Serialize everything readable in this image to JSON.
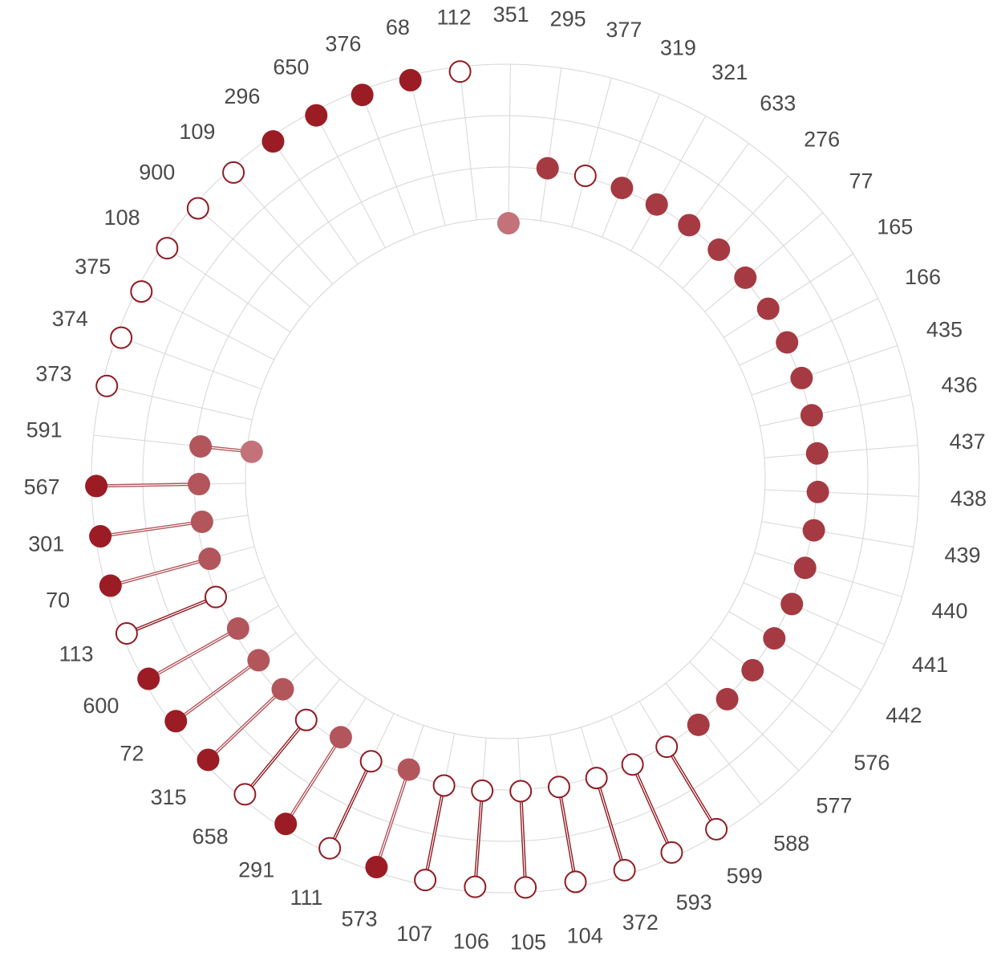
{
  "chart_data": {
    "type": "radial-dumbbell",
    "title": "",
    "colors": {
      "outer_filled": "#9b1c24",
      "mid_filled": "#b2565c",
      "inner_filled": "#c27278",
      "base_filled": "#a53a42",
      "outline_stroke": "#8f1b22",
      "open_fill": "#ffffff",
      "grid": "#d6d6d6",
      "label": "#4a4a4a"
    },
    "rings": [
      "inner",
      "mid",
      "base",
      "outer"
    ],
    "categories": [
      {
        "label": "591",
        "from": "inner",
        "from_filled": true,
        "to": "mid",
        "to_filled": true
      },
      {
        "label": "373",
        "from": null,
        "to": "outer",
        "to_filled": false
      },
      {
        "label": "374",
        "from": null,
        "to": "outer",
        "to_filled": false
      },
      {
        "label": "375",
        "from": null,
        "to": "outer",
        "to_filled": false
      },
      {
        "label": "108",
        "from": null,
        "to": "outer",
        "to_filled": false
      },
      {
        "label": "900",
        "from": null,
        "to": "outer",
        "to_filled": false
      },
      {
        "label": "109",
        "from": null,
        "to": "outer",
        "to_filled": false
      },
      {
        "label": "296",
        "from": null,
        "to": "outer",
        "to_filled": true
      },
      {
        "label": "650",
        "from": null,
        "to": "outer",
        "to_filled": true
      },
      {
        "label": "376",
        "from": null,
        "to": "outer",
        "to_filled": true
      },
      {
        "label": "68",
        "from": null,
        "to": "outer",
        "to_filled": true
      },
      {
        "label": "112",
        "from": null,
        "to": "outer",
        "to_filled": false
      },
      {
        "label": "351",
        "from": null,
        "to": "inner",
        "to_filled": true
      },
      {
        "label": "295",
        "from": null,
        "to": "base",
        "to_filled": true
      },
      {
        "label": "377",
        "from": null,
        "to": "base",
        "to_filled": false
      },
      {
        "label": "319",
        "from": null,
        "to": "base",
        "to_filled": true
      },
      {
        "label": "321",
        "from": null,
        "to": "base",
        "to_filled": true
      },
      {
        "label": "633",
        "from": null,
        "to": "base",
        "to_filled": true
      },
      {
        "label": "276",
        "from": null,
        "to": "base",
        "to_filled": true
      },
      {
        "label": "77",
        "from": null,
        "to": "base",
        "to_filled": true
      },
      {
        "label": "165",
        "from": null,
        "to": "base",
        "to_filled": true
      },
      {
        "label": "166",
        "from": null,
        "to": "base",
        "to_filled": true
      },
      {
        "label": "435",
        "from": null,
        "to": "base",
        "to_filled": true
      },
      {
        "label": "436",
        "from": null,
        "to": "base",
        "to_filled": true
      },
      {
        "label": "437",
        "from": null,
        "to": "base",
        "to_filled": true
      },
      {
        "label": "438",
        "from": null,
        "to": "base",
        "to_filled": true
      },
      {
        "label": "439",
        "from": null,
        "to": "base",
        "to_filled": true
      },
      {
        "label": "440",
        "from": null,
        "to": "base",
        "to_filled": true
      },
      {
        "label": "441",
        "from": null,
        "to": "base",
        "to_filled": true
      },
      {
        "label": "442",
        "from": null,
        "to": "base",
        "to_filled": true
      },
      {
        "label": "576",
        "from": null,
        "to": "base",
        "to_filled": true
      },
      {
        "label": "577",
        "from": null,
        "to": "base",
        "to_filled": true
      },
      {
        "label": "588",
        "from": null,
        "to": "base",
        "to_filled": true
      },
      {
        "label": "599",
        "from": "base",
        "from_filled": false,
        "to": "outer",
        "to_filled": false
      },
      {
        "label": "593",
        "from": "base",
        "from_filled": false,
        "to": "outer",
        "to_filled": false
      },
      {
        "label": "372",
        "from": "base",
        "from_filled": false,
        "to": "outer",
        "to_filled": false
      },
      {
        "label": "104",
        "from": "base",
        "from_filled": false,
        "to": "outer",
        "to_filled": false
      },
      {
        "label": "105",
        "from": "base",
        "from_filled": false,
        "to": "outer",
        "to_filled": false
      },
      {
        "label": "106",
        "from": "base",
        "from_filled": false,
        "to": "outer",
        "to_filled": false
      },
      {
        "label": "107",
        "from": "base",
        "from_filled": false,
        "to": "outer",
        "to_filled": false
      },
      {
        "label": "573",
        "from": "mid",
        "from_filled": true,
        "to": "outer",
        "to_filled": true
      },
      {
        "label": "111",
        "from": "base",
        "from_filled": false,
        "to": "outer",
        "to_filled": false
      },
      {
        "label": "291",
        "from": "mid",
        "from_filled": true,
        "to": "outer",
        "to_filled": true
      },
      {
        "label": "658",
        "from": "base",
        "from_filled": false,
        "to": "outer",
        "to_filled": false
      },
      {
        "label": "315",
        "from": "mid",
        "from_filled": true,
        "to": "outer",
        "to_filled": true
      },
      {
        "label": "72",
        "from": "mid",
        "from_filled": true,
        "to": "outer",
        "to_filled": true
      },
      {
        "label": "600",
        "from": "mid",
        "from_filled": true,
        "to": "outer",
        "to_filled": true
      },
      {
        "label": "113",
        "from": "base",
        "from_filled": false,
        "to": "outer",
        "to_filled": false
      },
      {
        "label": "70",
        "from": "mid",
        "from_filled": true,
        "to": "outer",
        "to_filled": true
      },
      {
        "label": "301",
        "from": "mid",
        "from_filled": true,
        "to": "outer",
        "to_filled": true
      },
      {
        "label": "567",
        "from": "mid",
        "from_filled": true,
        "to": "outer",
        "to_filled": true
      }
    ]
  }
}
